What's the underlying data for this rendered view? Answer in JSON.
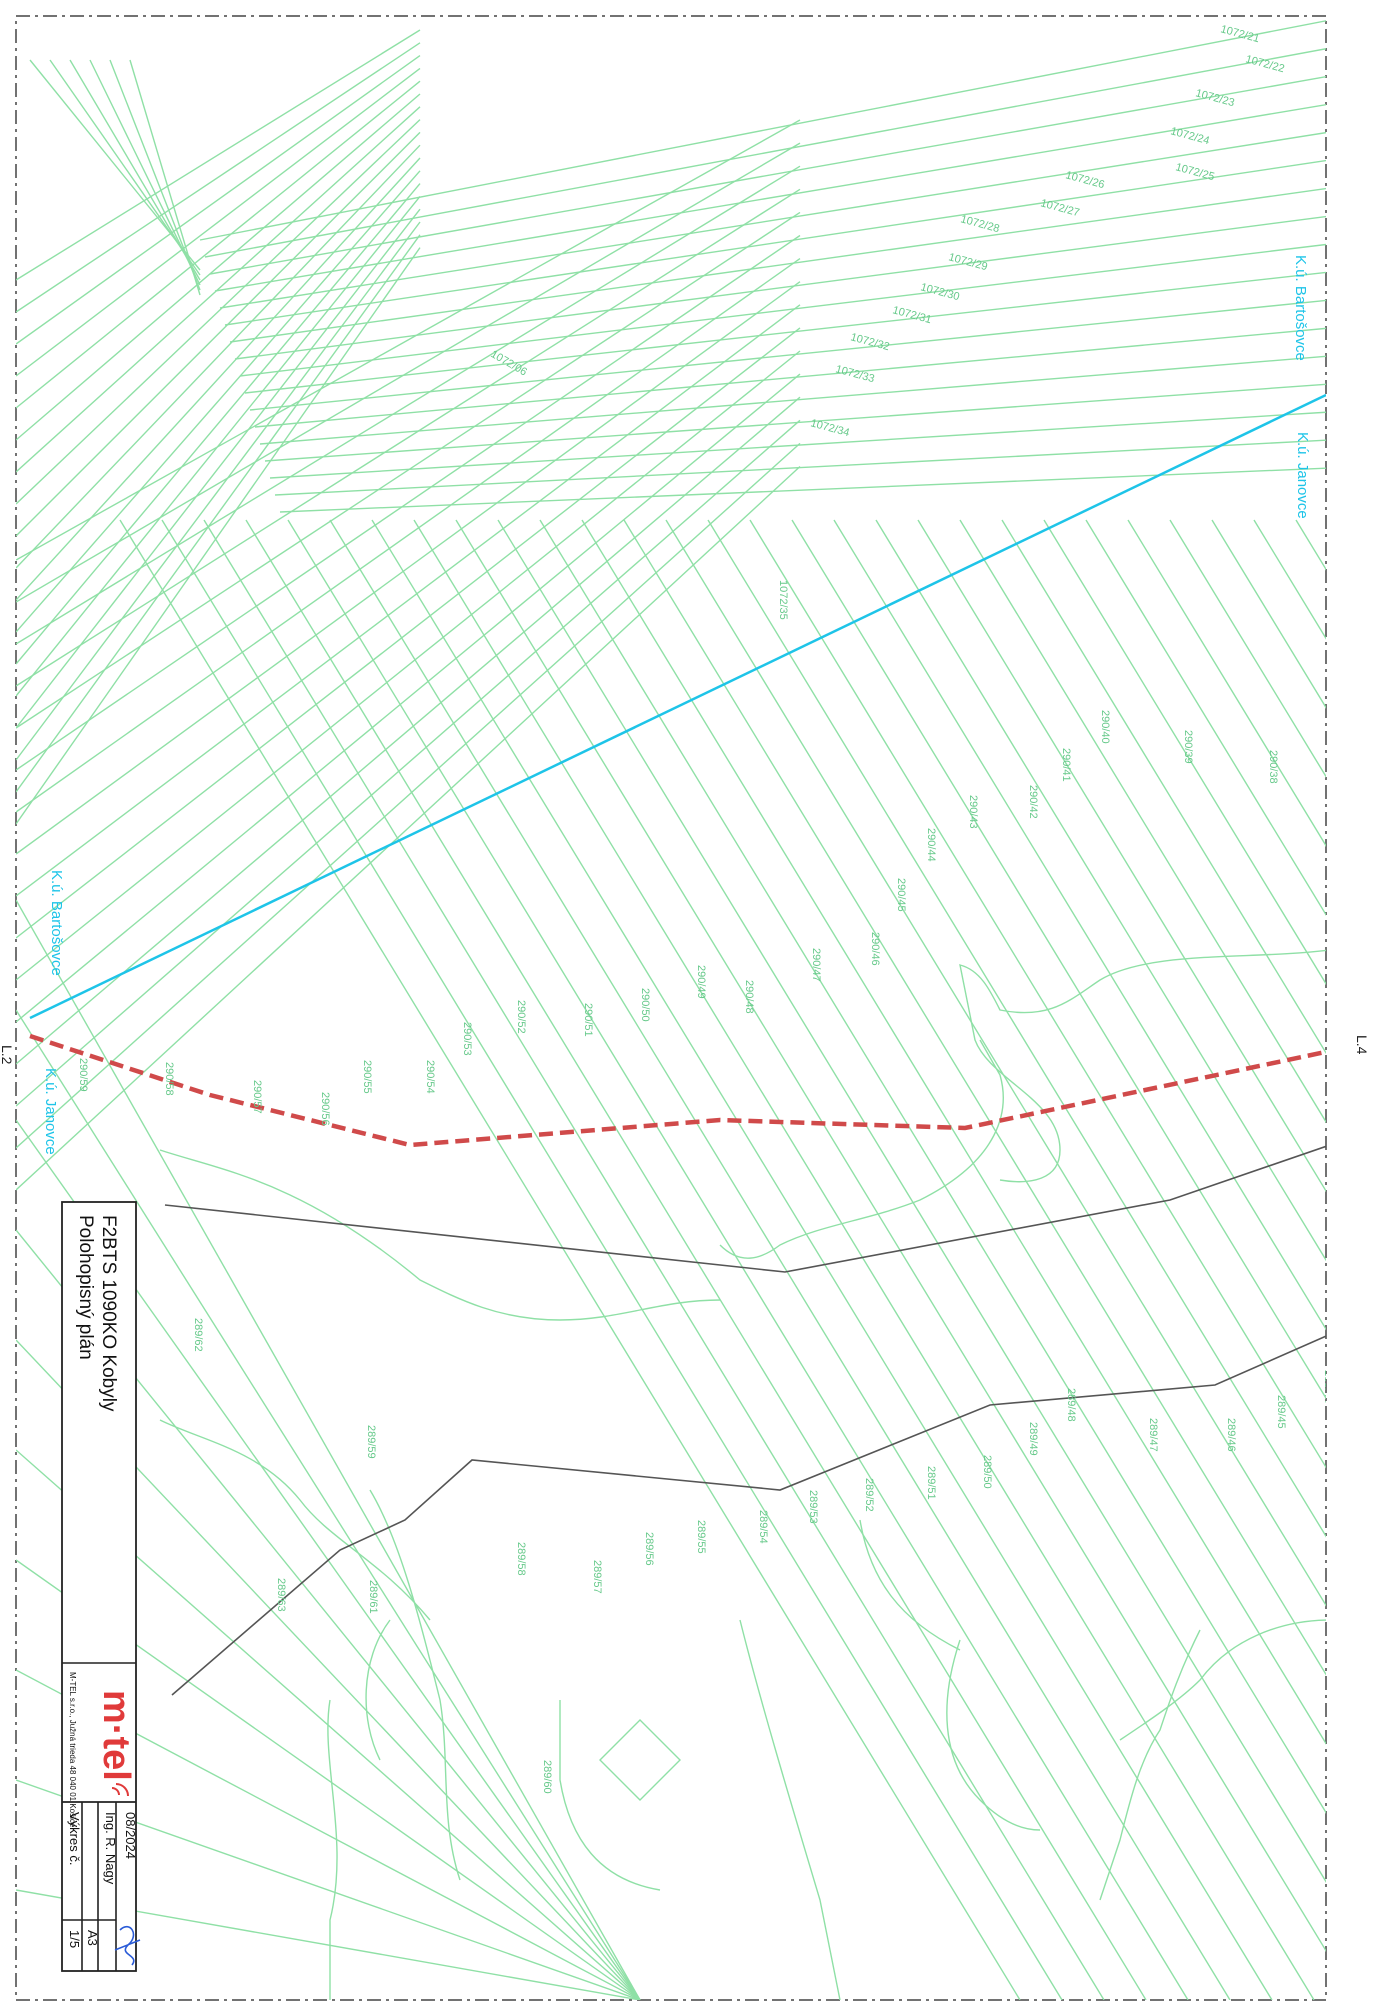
{
  "title_block": {
    "project": "F2BTS 1090KO Kobyly",
    "drawing": "Polohopisný plán",
    "company_logo": "m·tel",
    "company_address": "M-TEL s.r.o., Južná trieda 48 040 01 Košice",
    "date": "08/2024",
    "author": "Ing. R. Nagy",
    "format": "A3",
    "drawing_no_label": "Výkres č.",
    "drawing_no": "1/5"
  },
  "sheet_refs": {
    "left": "L.2",
    "right": "L.4"
  },
  "cadastral_labels": {
    "top_left_area": "K.ú. Bartošovce",
    "top_right_area": "K.ú. Janovce",
    "bottom_left_area": "K.ú. Bartošovce",
    "bottom_right_area": "K.ú. Janovce"
  },
  "parcel_labels": {
    "p1072_21": "1072/21",
    "p1072_22": "1072/22",
    "p1072_23": "1072/23",
    "p1072_24": "1072/24",
    "p1072_25": "1072/25",
    "p1072_26": "1072/26",
    "p1072_27": "1072/27",
    "p1072_28": "1072/28",
    "p1072_29": "1072/29",
    "p1072_30": "1072/30",
    "p1072_31": "1072/31",
    "p1072_32": "1072/32",
    "p1072_33": "1072/33",
    "p1072_34": "1072/34",
    "p1072_35": "1072/35",
    "p1072_06": "1072/06",
    "p290_38": "290/38",
    "p290_39": "290/39",
    "p290_40": "290/40",
    "p290_41": "290/41",
    "p290_42": "290/42",
    "p290_43": "290/43",
    "p290_44": "290/44",
    "p290_45": "290/45",
    "p290_46": "290/46",
    "p290_47": "290/47",
    "p290_48": "290/48",
    "p290_49": "290/49",
    "p290_50": "290/50",
    "p290_51": "290/51",
    "p290_52": "290/52",
    "p290_53": "290/53",
    "p290_54": "290/54",
    "p290_55": "290/55",
    "p290_56": "290/56",
    "p290_57": "290/57",
    "p290_58": "290/58",
    "p290_59": "290/59",
    "p289_44": "289/44",
    "p289_45": "289/45",
    "p289_46": "289/46",
    "p289_47": "289/47",
    "p289_48": "289/48",
    "p289_49": "289/49",
    "p289_50": "289/50",
    "p289_51": "289/51",
    "p289_52": "289/52",
    "p289_53": "289/53",
    "p289_54": "289/54",
    "p289_55": "289/55",
    "p289_56": "289/56",
    "p289_57": "289/57",
    "p289_58": "289/58",
    "p289_59": "289/59",
    "p289_60": "289/60",
    "p289_61": "289/61",
    "p289_62": "289/62",
    "p289_63": "289/63"
  },
  "colors": {
    "parcel_lines": "#8fe0a6",
    "cadastral_boundary": "#1ec4e8",
    "route": "#d04a4a",
    "road_edges": "#555555"
  }
}
